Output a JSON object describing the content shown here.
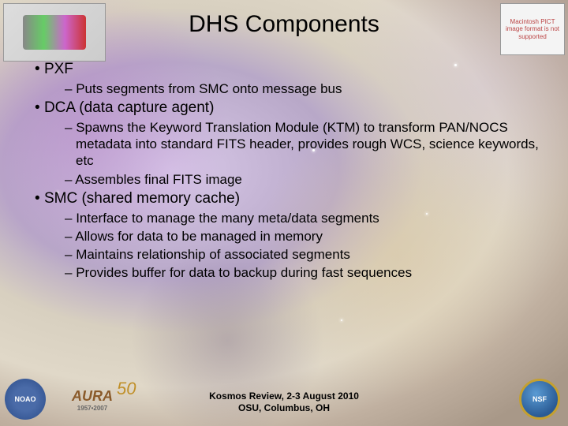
{
  "title": "DHS Components",
  "bullets": {
    "b1": {
      "label": "PXF",
      "sub1": "Puts segments from SMC onto message bus"
    },
    "b2": {
      "label": "DCA (data capture agent)",
      "sub1": "Spawns the Keyword Translation Module (KTM) to transform PAN/NOCS metadata into standard FITS header, provides rough WCS, science keywords, etc",
      "sub2": "Assembles final FITS image"
    },
    "b3": {
      "label": "SMC (shared memory cache)",
      "sub1": "Interface to manage the many meta/data segments",
      "sub2": "Allows for data to be managed in memory",
      "sub3": "Maintains relationship of associated segments",
      "sub4": "Provides buffer for data to backup during fast sequences"
    }
  },
  "footer": {
    "line1": "Kosmos Review, 2-3 August 2010",
    "line2": "OSU, Columbus, OH"
  },
  "logos": {
    "noao": "NOAO",
    "aura": "AURA",
    "aura_years": "1957•2007",
    "aura_50": "50",
    "nsf": "NSF"
  },
  "placeholder": {
    "tr": "Macintosh PICT image format is not supported"
  },
  "colors": {
    "title": "#000000",
    "text": "#000000"
  }
}
